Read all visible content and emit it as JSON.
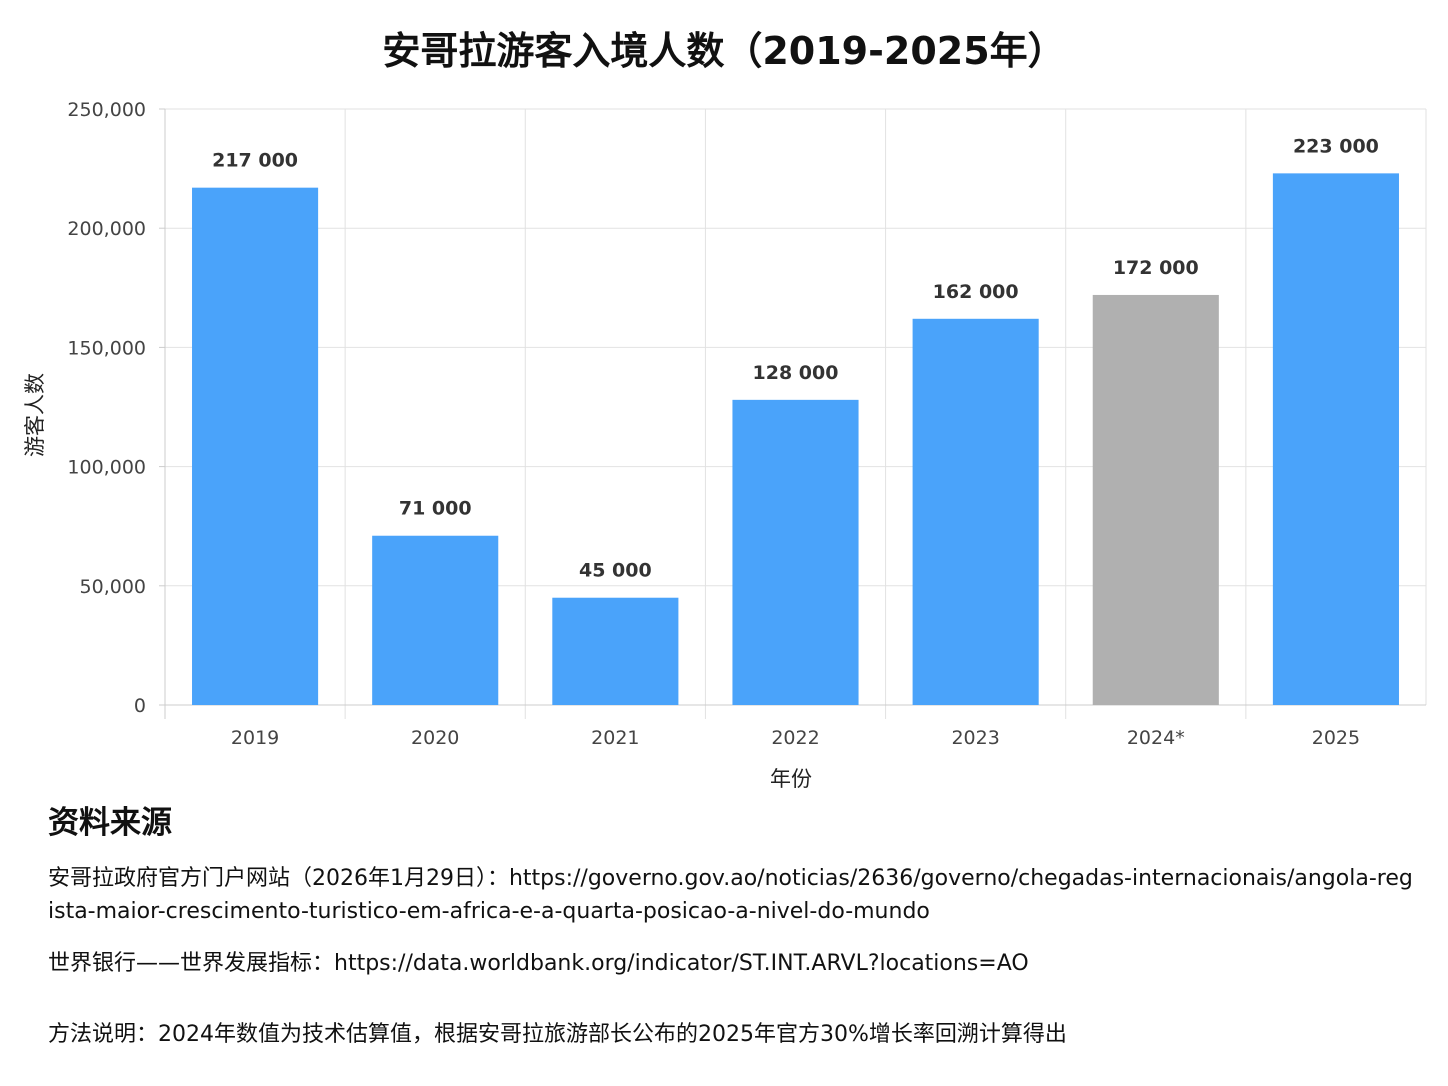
{
  "chart_data": {
    "type": "bar",
    "title": "安哥拉游客入境人数（2019-2025年）",
    "xlabel": "年份",
    "ylabel": "游客人数",
    "categories": [
      "2019",
      "2020",
      "2021",
      "2022",
      "2023",
      "2024*",
      "2025"
    ],
    "values": [
      217000,
      71000,
      45000,
      128000,
      162000,
      172000,
      223000
    ],
    "value_labels": [
      "217 000",
      "71 000",
      "45 000",
      "128 000",
      "162 000",
      "172 000",
      "223 000"
    ],
    "bar_colors": [
      "#4aa3fa",
      "#4aa3fa",
      "#4aa3fa",
      "#4aa3fa",
      "#4aa3fa",
      "#b0b0b0",
      "#4aa3fa"
    ],
    "ylim": [
      0,
      250000
    ],
    "yticks": [
      0,
      50000,
      100000,
      150000,
      200000,
      250000
    ],
    "ytick_labels": [
      "0",
      "50,000",
      "100,000",
      "150,000",
      "200,000",
      "250,000"
    ],
    "grid": true,
    "legend": false
  },
  "sources": {
    "heading": "资料来源",
    "gov_portal": "安哥拉政府官方门户网站（2026年1月29日）：https://governo.gov.ao/noticias/2636/governo/chegadas-internacionais/angola-regista-maior-crescimento-turistico-em-africa-e-a-quarta-posicao-a-nivel-do-mundo",
    "world_bank": "世界银行——世界发展指标：https://data.worldbank.org/indicator/ST.INT.ARVL?locations=AO",
    "method_note": "方法说明：2024年数值为技术估算值，根据安哥拉旅游部长公布的2025年官方30%增长率回溯计算得出"
  }
}
